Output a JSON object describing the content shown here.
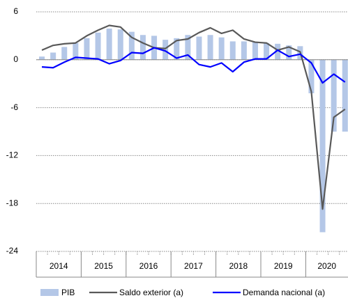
{
  "chart_data": {
    "type": "bar-line",
    "categories": [
      "2014",
      null,
      null,
      null,
      "2015",
      null,
      null,
      null,
      "2016",
      null,
      null,
      null,
      "2017",
      null,
      null,
      null,
      "2018",
      null,
      null,
      null,
      "2019",
      null,
      null,
      null,
      "2020",
      null,
      null,
      null
    ],
    "series": [
      {
        "name": "PIB",
        "type": "bar",
        "color": "#b4c7e7",
        "values": [
          0.4,
          0.9,
          1.6,
          2.1,
          2.7,
          3.4,
          3.9,
          3.8,
          3.5,
          3.1,
          3.0,
          2.5,
          2.7,
          3.1,
          2.9,
          3.1,
          2.8,
          2.3,
          2.3,
          2.2,
          2.1,
          2.0,
          1.8,
          1.7,
          -4.2,
          -21.6,
          -9.0,
          -9.0
        ]
      },
      {
        "name": "Saldo exterior (a)",
        "type": "line",
        "color": "#595959",
        "values": [
          1.2,
          1.8,
          2.0,
          2.1,
          3.0,
          3.7,
          4.3,
          4.1,
          2.8,
          2.1,
          1.5,
          1.4,
          2.4,
          2.6,
          3.4,
          4.0,
          3.3,
          3.7,
          2.6,
          2.2,
          2.1,
          1.2,
          1.6,
          1.0,
          -4.0,
          -18.7,
          -7.2,
          -6.2
        ]
      },
      {
        "name": "Demanda nacional (a)",
        "type": "line",
        "color": "#0000ff",
        "values": [
          -0.9,
          -1.0,
          -0.3,
          0.3,
          0.2,
          0.1,
          -0.5,
          -0.1,
          0.9,
          0.8,
          1.5,
          1.1,
          0.2,
          0.6,
          -0.6,
          -0.9,
          -0.4,
          -1.5,
          -0.3,
          0.1,
          0.1,
          1.2,
          0.4,
          0.7,
          -0.4,
          -2.9,
          -1.8,
          -2.8
        ]
      }
    ],
    "ylim": [
      -24,
      6
    ],
    "yticks": [
      6,
      0,
      -6,
      -12,
      -18,
      -24
    ],
    "grid": true,
    "legend": "bottom"
  }
}
